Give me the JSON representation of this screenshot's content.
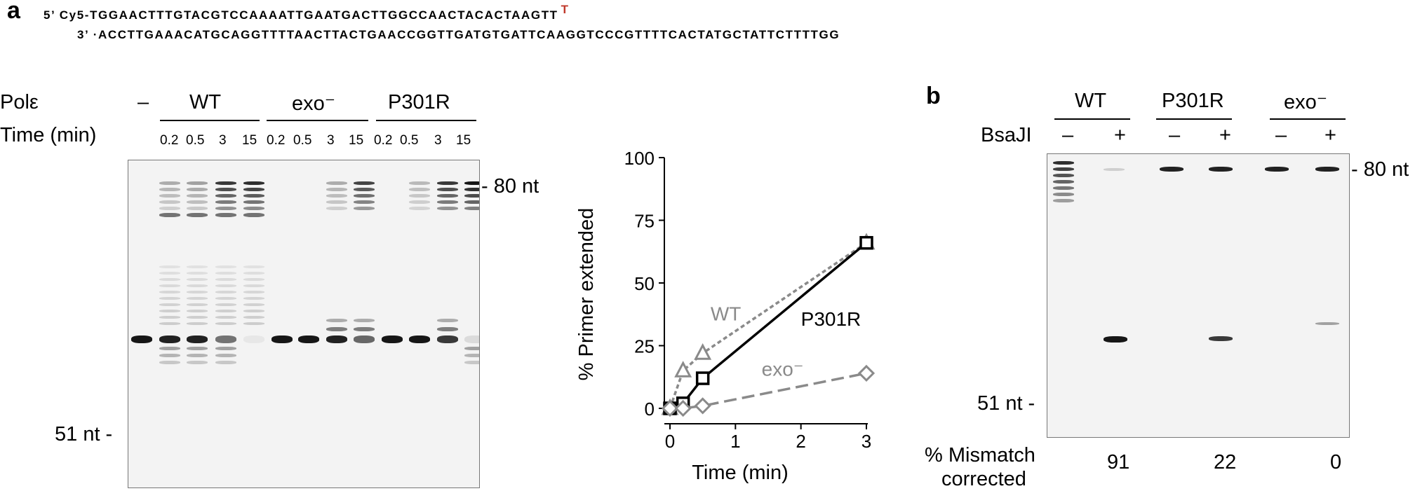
{
  "panel_a": {
    "letter": "a",
    "sequence": {
      "top": "5’ Cy5-TGGAACTTTGTACGTCCAAAATTGAATGACTTGGCCAACTACACTAAGTT",
      "mismatch": "T",
      "mismatch_color": "#c0392b",
      "bottom": "3’ ·ACCTTGAAACATGCAGGTTTTAACTTACTGAACCGGTTGATGTGATTCAAGGTCCCGTTTTCACTATGCTATTCTTTTGG"
    },
    "gel": {
      "row_label_pol": "Polε",
      "row_label_time": "Time (min)",
      "no_enzyme_lane": "–",
      "groups": [
        {
          "name": "WT",
          "times": [
            "0.2",
            "0.5",
            "3",
            "15"
          ]
        },
        {
          "name": "exo⁻",
          "times": [
            "0.2",
            "0.5",
            "3",
            "15"
          ]
        },
        {
          "name": "P301R",
          "times": [
            "0.2",
            "0.5",
            "3",
            "15"
          ]
        }
      ],
      "marker_top": "- 80 nt",
      "marker_bottom": "51 nt -"
    },
    "chart_data": {
      "type": "line",
      "xlabel": "Time (min)",
      "ylabel": "% Primer extended",
      "xlim": [
        0,
        3
      ],
      "ylim": [
        0,
        100
      ],
      "xticks": [
        "0",
        "1",
        "2",
        "3"
      ],
      "yticks": [
        "0",
        "25",
        "50",
        "75",
        "100"
      ],
      "series": [
        {
          "name": "WT",
          "marker": "triangle",
          "line": "dotted",
          "color": "#8a8a8a",
          "x": [
            0,
            0.2,
            0.5,
            3
          ],
          "y": [
            0,
            15,
            22,
            66
          ]
        },
        {
          "name": "P301R",
          "marker": "square",
          "line": "solid",
          "color": "#000000",
          "x": [
            0,
            0.2,
            0.5,
            3
          ],
          "y": [
            0,
            2,
            12,
            66
          ]
        },
        {
          "name": "exo⁻",
          "marker": "diamond",
          "line": "dashed",
          "color": "#8a8a8a",
          "x": [
            0,
            0.2,
            0.5,
            3
          ],
          "y": [
            0,
            0,
            1,
            14
          ]
        }
      ]
    }
  },
  "panel_b": {
    "letter": "b",
    "groups": [
      "WT",
      "P301R",
      "exo⁻"
    ],
    "enzyme_label": "BsaJI",
    "lane_signs": [
      "–",
      "+",
      "–",
      "+",
      "–",
      "+"
    ],
    "marker_top": "- 80 nt",
    "marker_bottom": "51 nt -",
    "mismatch_label_line1": "% Mismatch",
    "mismatch_label_line2": "corrected",
    "mismatch_values": [
      "91",
      "22",
      "0"
    ]
  }
}
